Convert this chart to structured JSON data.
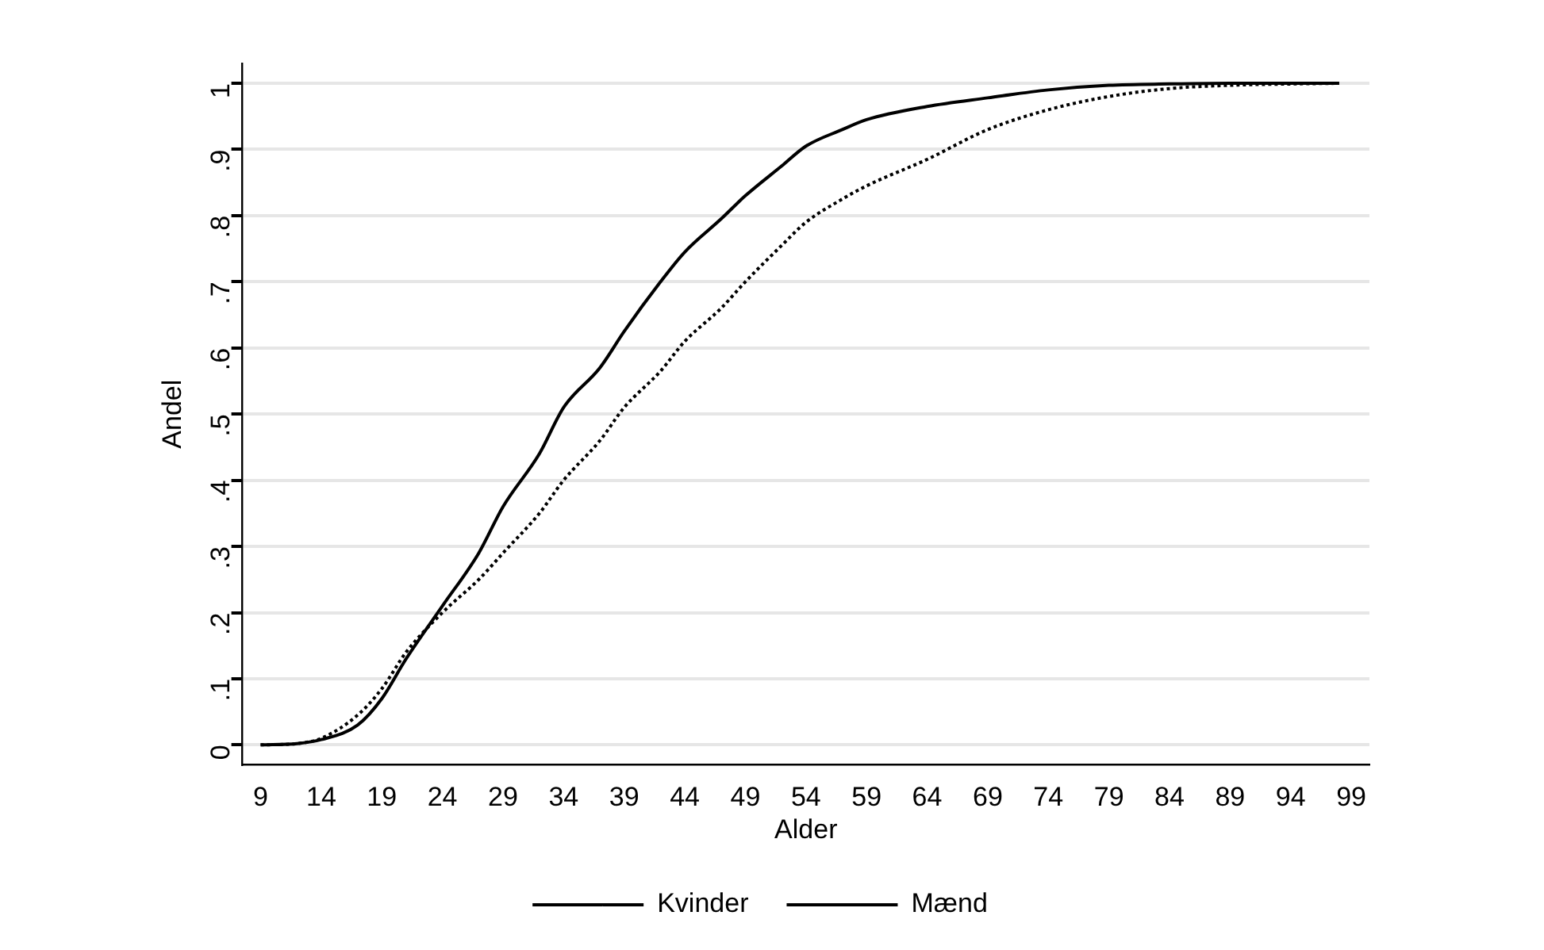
{
  "chart_data": {
    "type": "line",
    "xlabel": "Alder",
    "ylabel": "Andel",
    "xlim": [
      7.5,
      100.5
    ],
    "xticks": [
      9,
      14,
      19,
      24,
      29,
      34,
      39,
      44,
      49,
      54,
      59,
      64,
      69,
      74,
      79,
      84,
      89,
      94,
      99
    ],
    "ylim": [
      -0.03,
      1.03
    ],
    "yticks": [
      {
        "value": 0,
        "label": "0"
      },
      {
        "value": 0.1,
        "label": ".1"
      },
      {
        "value": 0.2,
        "label": ".2"
      },
      {
        "value": 0.3,
        "label": ".3"
      },
      {
        "value": 0.4,
        "label": ".4"
      },
      {
        "value": 0.5,
        "label": ".5"
      },
      {
        "value": 0.6,
        "label": ".6"
      },
      {
        "value": 0.7,
        "label": ".7"
      },
      {
        "value": 0.8,
        "label": ".8"
      },
      {
        "value": 0.9,
        "label": ".9"
      },
      {
        "value": 1,
        "label": "1"
      }
    ],
    "grid": "y",
    "legend": "bottom",
    "marker": "none",
    "x": [
      9,
      12,
      14,
      17,
      19,
      21,
      24,
      27,
      29,
      32,
      34,
      37,
      39,
      42,
      44,
      47,
      49,
      52,
      54,
      57,
      59,
      64,
      69,
      74,
      79,
      84,
      89,
      94,
      98
    ],
    "series": [
      {
        "name": "Kvinder",
        "color": "#000000",
        "line_style": "dotted",
        "values": [
          0,
          0.002,
          0.01,
          0.045,
          0.085,
          0.14,
          0.2,
          0.25,
          0.29,
          0.35,
          0.4,
          0.46,
          0.51,
          0.565,
          0.61,
          0.66,
          0.7,
          0.755,
          0.79,
          0.825,
          0.845,
          0.885,
          0.93,
          0.96,
          0.98,
          0.992,
          0.997,
          0.999,
          1
        ]
      },
      {
        "name": "Mænd",
        "color": "#000000",
        "line_style": "solid",
        "values": [
          0,
          0.002,
          0.008,
          0.03,
          0.07,
          0.13,
          0.21,
          0.29,
          0.36,
          0.44,
          0.51,
          0.57,
          0.625,
          0.7,
          0.745,
          0.795,
          0.83,
          0.875,
          0.905,
          0.93,
          0.945,
          0.965,
          0.978,
          0.99,
          0.997,
          0.999,
          1,
          1,
          1
        ]
      }
    ]
  }
}
